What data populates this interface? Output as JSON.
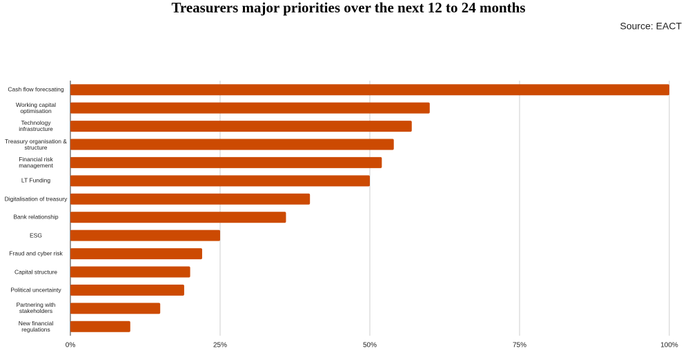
{
  "chart_data": {
    "type": "barh",
    "title": "Treasurers major priorities over the next 12 to 24 months",
    "source": "Source: EACT",
    "categories": [
      "Cash flow forecsating",
      "Working capital optimisation",
      "Technology infrastructure",
      "Treasury organisation & structure",
      "Financial risk management",
      "LT Funding",
      "Digitalisation of treasury",
      "Bank relationship",
      "ESG",
      "Fraud and cyber risk",
      "Capital structure",
      "Political uncertainty",
      "Partnering with stakeholders",
      "New financial regulations"
    ],
    "values": [
      100,
      60,
      57,
      54,
      52,
      50,
      40,
      36,
      25,
      22,
      20,
      19,
      15,
      10
    ],
    "color": "#cc4a02",
    "xlim": [
      0,
      100
    ],
    "xticks": [
      {
        "value": 0,
        "label": "0%"
      },
      {
        "value": 25,
        "label": "25%"
      },
      {
        "value": 50,
        "label": "50%"
      },
      {
        "value": 75,
        "label": "75%"
      },
      {
        "value": 100,
        "label": "100%"
      }
    ],
    "grid": true
  }
}
